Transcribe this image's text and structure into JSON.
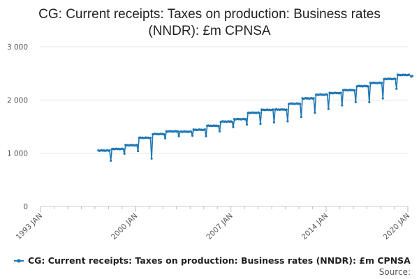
{
  "chart_data": {
    "type": "line",
    "title_lines": [
      "CG: Current receipts: Taxes on production: Business rates",
      "(NNDR): £m CPNSA"
    ],
    "xlabel": "",
    "ylabel": "",
    "x_tick_labels": [
      "1993 JAN",
      "2000 JAN",
      "2007 JAN",
      "2014 JAN",
      "2020 JAN"
    ],
    "x_tick_years": [
      1993,
      2000,
      2007,
      2014,
      2020
    ],
    "xlim": [
      1993,
      2020
    ],
    "ylim": [
      0,
      3000
    ],
    "y_ticks": [
      0,
      1000,
      2000,
      3000
    ],
    "y_tick_labels": [
      "0",
      "1 000",
      "2 000",
      "3 000"
    ],
    "grid": true,
    "legend_position": "bottom",
    "source_label": "Source:",
    "color": "#1f77b4",
    "series": [
      {
        "name": "CG: Current receipts: Taxes on production: Business rates (NNDR): £m CPNSA",
        "start_year": 1997,
        "start_month": 4,
        "annual_levels": [
          1050,
          1080,
          1150,
          1290,
          1360,
          1410,
          1405,
          1440,
          1515,
          1595,
          1640,
          1760,
          1815,
          1820,
          1930,
          2030,
          2100,
          2130,
          2185,
          2260,
          2320,
          2395,
          2470
        ],
        "march_dips": [
          860,
          990,
          1040,
          900,
          1280,
          1320,
          1330,
          1320,
          1410,
          1490,
          1540,
          1550,
          1580,
          1600,
          1680,
          1760,
          1830,
          1900,
          1960,
          1960,
          2030,
          2210
        ],
        "final_values": [
          2440,
          2450
        ]
      }
    ]
  }
}
